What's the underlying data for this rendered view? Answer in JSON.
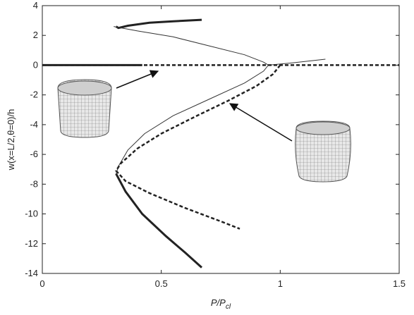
{
  "chart_data": {
    "type": "line",
    "xlabel": "P/P",
    "xlabel_sub": "cl",
    "ylabel": "w(x=L/2,θ=0)/h",
    "xlim": [
      0,
      1.5
    ],
    "xticks": [
      0,
      0.5,
      1,
      1.5
    ],
    "ylim": [
      -14,
      4
    ],
    "yticks": [
      4,
      2,
      0,
      -2,
      -4,
      -6,
      -8,
      -10,
      -12,
      -14
    ],
    "series": [
      {
        "color": "#222222",
        "width": 3,
        "dash": false,
        "x": [
          0,
          0.42,
          null,
          0.31,
          0.32,
          0.36,
          0.45,
          0.55,
          0.67,
          null,
          0.31,
          0.35,
          0.42,
          0.52,
          0.6,
          0.67
        ],
        "values": [
          0,
          0,
          null,
          2.6,
          2.5,
          2.65,
          2.85,
          2.95,
          3.05,
          null,
          -7.3,
          -8.5,
          -10,
          -11.5,
          -12.6,
          -13.6
        ]
      },
      {
        "color": "#333333",
        "width": 1,
        "dash": false,
        "x": [
          0.3,
          0.4,
          0.55,
          0.7,
          0.85,
          0.93,
          0.95,
          0.93,
          0.85,
          0.7,
          0.55,
          0.43,
          0.36,
          0.32,
          0.31,
          null,
          0.95,
          1.05,
          1.19
        ],
        "values": [
          2.6,
          2.3,
          1.9,
          1.3,
          0.7,
          0.2,
          0,
          -0.4,
          -1.2,
          -2.3,
          -3.4,
          -4.6,
          -5.7,
          -6.8,
          -7.3,
          null,
          0,
          0.15,
          0.4
        ]
      },
      {
        "color": "#222222",
        "width": 2.5,
        "dash": true,
        "x": [
          0,
          1.5,
          null,
          1.0,
          0.97,
          0.9,
          0.78,
          0.65,
          0.5,
          0.4,
          0.33,
          0.31,
          0.35,
          0.45,
          0.6,
          0.75,
          0.83
        ],
        "values": [
          0,
          0,
          null,
          0,
          -0.6,
          -1.4,
          -2.4,
          -3.4,
          -4.6,
          -5.6,
          -6.6,
          -7.1,
          -7.8,
          -8.6,
          -9.6,
          -10.5,
          -11
        ]
      }
    ]
  }
}
